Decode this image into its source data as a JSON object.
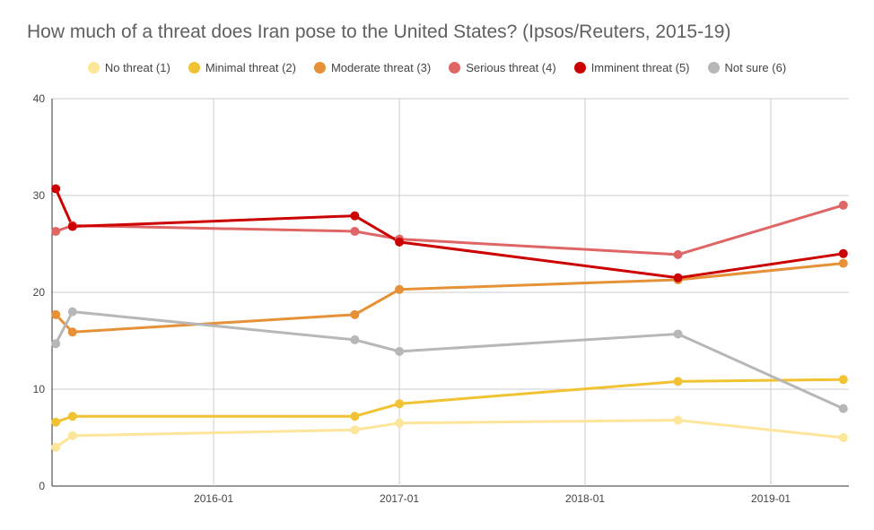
{
  "chart_data": {
    "type": "line",
    "title": "How much of a threat does Iran pose to the United States? (Ipsos/Reuters, 2015-19)",
    "xlabel": "",
    "ylabel": "",
    "ylim": [
      0,
      40
    ],
    "yticks": [
      "0",
      "10",
      "20",
      "30",
      "40"
    ],
    "xticks": [
      {
        "label": "2016-01",
        "date": 2016.0
      },
      {
        "label": "2017-01",
        "date": 2017.0
      },
      {
        "label": "2018-01",
        "date": 2018.0
      },
      {
        "label": "2019-01",
        "date": 2019.0
      }
    ],
    "xlim": [
      2015.13,
      2019.42
    ],
    "x": [
      2015.15,
      2015.24,
      2016.76,
      2017.0,
      2018.5,
      2019.39
    ],
    "legend_position": "top",
    "grid": true,
    "series": [
      {
        "name": "No threat (1)",
        "color": "#fde59a",
        "values": [
          4.0,
          5.2,
          5.8,
          6.5,
          6.8,
          5.0
        ]
      },
      {
        "name": "Minimal threat (2)",
        "color": "#f1c232",
        "values": [
          6.6,
          7.2,
          7.2,
          8.5,
          10.8,
          11.0
        ]
      },
      {
        "name": "Moderate threat (3)",
        "color": "#e69138",
        "values": [
          17.7,
          15.9,
          17.7,
          20.3,
          21.3,
          23.0
        ]
      },
      {
        "name": "Serious threat (4)",
        "color": "#e06666",
        "values": [
          26.3,
          26.9,
          26.3,
          25.5,
          23.9,
          29.0
        ]
      },
      {
        "name": "Imminent threat (5)",
        "color": "#cc0000",
        "values": [
          30.7,
          26.8,
          27.9,
          25.2,
          21.5,
          24.0
        ]
      },
      {
        "name": "Not sure (6)",
        "color": "#b7b7b7",
        "values": [
          14.7,
          18.0,
          15.1,
          13.9,
          15.7,
          8.0
        ]
      }
    ]
  }
}
